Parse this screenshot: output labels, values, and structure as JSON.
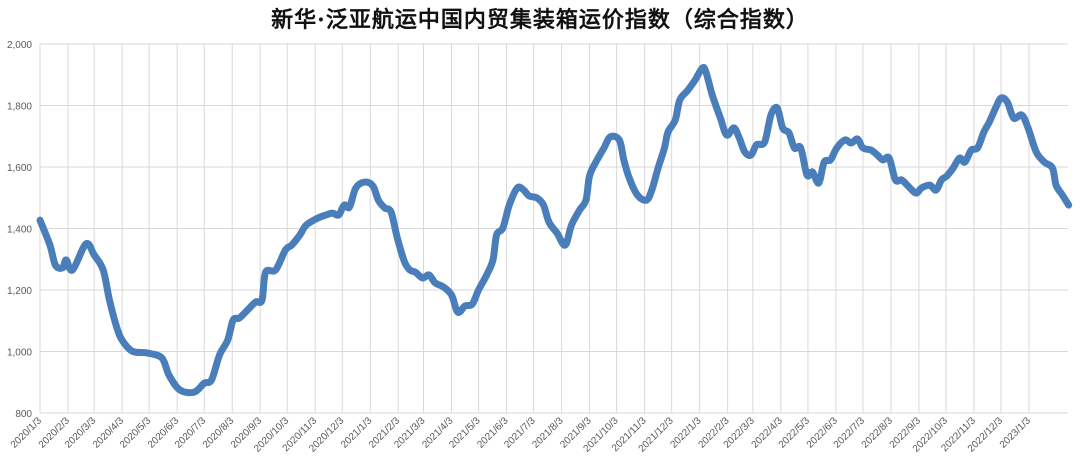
{
  "chart_data": {
    "type": "line",
    "title": "新华·泛亚航运中国内贸集装箱运价指数（综合指数）",
    "xlabel": "",
    "ylabel": "",
    "ylim": [
      800,
      2000
    ],
    "yticks": [
      800,
      1000,
      1200,
      1400,
      1600,
      1800,
      2000
    ],
    "ytick_labels": [
      "800",
      "1,000",
      "1,200",
      "1,400",
      "1,600",
      "1,800",
      "2,000"
    ],
    "xtick_labels": [
      "2020/1/3",
      "2020/2/3",
      "2020/3/3",
      "2020/4/3",
      "2020/5/3",
      "2020/6/3",
      "2020/7/3",
      "2020/8/3",
      "2020/9/3",
      "2020/10/3",
      "2020/11/3",
      "2020/12/3",
      "2021/1/3",
      "2021/2/3",
      "2021/3/3",
      "2021/4/3",
      "2021/5/3",
      "2021/6/3",
      "2021/7/3",
      "2021/8/3",
      "2021/9/3",
      "2021/10/3",
      "2021/11/3",
      "2021/12/3",
      "2022/1/3",
      "2022/2/3",
      "2022/3/3",
      "2022/4/3",
      "2022/5/3",
      "2022/6/3",
      "2022/7/3",
      "2022/8/3",
      "2022/9/3",
      "2022/10/3",
      "2022/11/3",
      "2022/12/3",
      "2023/1/3"
    ],
    "grid": true,
    "legend": "none",
    "line_color": "#4a7ebb",
    "series": [
      {
        "x": [
          "2020-01-03",
          "2020-01-14",
          "2020-01-20",
          "2020-01-28",
          "2020-02-01",
          "2020-02-08",
          "2020-02-23",
          "2020-03-03",
          "2020-03-13",
          "2020-03-20",
          "2020-03-29",
          "2020-04-05",
          "2020-04-15",
          "2020-05-01",
          "2020-05-17",
          "2020-05-25",
          "2020-06-06",
          "2020-06-22",
          "2020-07-03",
          "2020-07-11",
          "2020-07-20",
          "2020-07-29",
          "2020-08-04",
          "2020-08-11",
          "2020-08-20",
          "2020-08-29",
          "2020-09-05",
          "2020-09-09",
          "2020-09-20",
          "2020-10-01",
          "2020-10-08",
          "2020-10-17",
          "2020-10-24",
          "2020-11-06",
          "2020-11-15",
          "2020-11-22",
          "2020-11-29",
          "2020-12-05",
          "2020-12-11",
          "2020-12-18",
          "2020-12-28",
          "2021-01-06",
          "2021-01-12",
          "2021-01-19",
          "2021-01-26",
          "2021-02-02",
          "2021-02-10",
          "2021-02-16",
          "2021-02-22",
          "2021-03-02",
          "2021-03-09",
          "2021-03-16",
          "2021-03-25",
          "2021-04-03",
          "2021-04-10",
          "2021-04-18",
          "2021-04-26",
          "2021-05-03",
          "2021-05-12",
          "2021-05-19",
          "2021-05-23",
          "2021-05-30",
          "2021-06-06",
          "2021-06-15",
          "2021-06-22",
          "2021-06-28",
          "2021-07-07",
          "2021-07-14",
          "2021-07-20",
          "2021-07-29",
          "2021-08-07",
          "2021-08-14",
          "2021-08-23",
          "2021-08-30",
          "2021-09-03",
          "2021-09-10",
          "2021-09-19",
          "2021-09-26",
          "2021-10-06",
          "2021-10-11",
          "2021-10-17",
          "2021-10-26",
          "2021-11-05",
          "2021-11-11",
          "2021-11-18",
          "2021-11-25",
          "2021-11-29",
          "2021-12-07",
          "2021-12-12",
          "2021-12-21",
          "2021-12-29",
          "2022-01-06",
          "2022-01-10",
          "2022-01-17",
          "2022-01-26",
          "2022-02-02",
          "2022-02-10",
          "2022-02-16",
          "2022-02-22",
          "2022-03-01",
          "2022-03-07",
          "2022-03-16",
          "2022-03-23",
          "2022-03-30",
          "2022-04-05",
          "2022-04-12",
          "2022-04-18",
          "2022-04-25",
          "2022-05-02",
          "2022-05-08",
          "2022-05-15",
          "2022-05-21",
          "2022-05-28",
          "2022-06-04",
          "2022-06-13",
          "2022-06-20",
          "2022-06-27",
          "2022-07-03",
          "2022-07-12",
          "2022-07-19",
          "2022-07-25",
          "2022-08-01",
          "2022-08-08",
          "2022-08-15",
          "2022-08-24",
          "2022-08-31",
          "2022-09-06",
          "2022-09-15",
          "2022-09-22",
          "2022-09-28",
          "2022-10-04",
          "2022-10-11",
          "2022-10-18",
          "2022-10-24",
          "2022-10-31",
          "2022-11-07",
          "2022-11-14",
          "2022-11-20",
          "2022-11-27",
          "2022-12-03",
          "2022-12-10",
          "2022-12-17",
          "2022-12-26",
          "2023-01-02",
          "2023-01-11",
          "2023-01-20",
          "2023-01-29",
          "2023-02-02",
          "2023-02-09",
          "2023-02-16"
        ],
        "values": [
          1427,
          1346,
          1281,
          1272,
          1298,
          1265,
          1350,
          1314,
          1265,
          1167,
          1070,
          1028,
          1000,
          995,
          979,
          923,
          875,
          868,
          897,
          907,
          989,
          1037,
          1102,
          1109,
          1135,
          1161,
          1167,
          1258,
          1265,
          1330,
          1346,
          1379,
          1411,
          1434,
          1444,
          1450,
          1444,
          1476,
          1470,
          1532,
          1551,
          1538,
          1492,
          1467,
          1454,
          1369,
          1291,
          1265,
          1258,
          1239,
          1249,
          1223,
          1210,
          1184,
          1128,
          1148,
          1154,
          1200,
          1249,
          1298,
          1379,
          1402,
          1476,
          1532,
          1525,
          1506,
          1499,
          1476,
          1421,
          1385,
          1346,
          1411,
          1460,
          1492,
          1571,
          1616,
          1662,
          1698,
          1688,
          1623,
          1564,
          1509,
          1492,
          1525,
          1597,
          1662,
          1714,
          1753,
          1818,
          1850,
          1883,
          1922,
          1909,
          1834,
          1759,
          1704,
          1727,
          1694,
          1649,
          1639,
          1672,
          1681,
          1769,
          1792,
          1727,
          1711,
          1662,
          1662,
          1574,
          1584,
          1548,
          1616,
          1623,
          1662,
          1688,
          1678,
          1691,
          1662,
          1655,
          1639,
          1623,
          1629,
          1558,
          1558,
          1532,
          1515,
          1532,
          1541,
          1525,
          1558,
          1571,
          1597,
          1629,
          1616,
          1655,
          1662,
          1714,
          1746,
          1792,
          1824,
          1811,
          1759,
          1769,
          1727,
          1649,
          1616,
          1597,
          1541,
          1509,
          1476
        ]
      }
    ]
  }
}
